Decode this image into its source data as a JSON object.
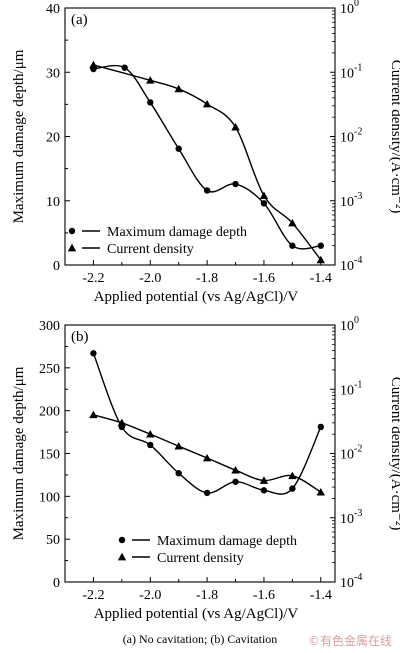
{
  "caption": "(a) No cavitation; (b) Cavitation",
  "watermark": "©有色金属在线",
  "chart_data": [
    {
      "type": "line",
      "panel_label": "(a)",
      "xlabel": "Applied potential (vs Ag/AgCl)/V",
      "ylabel_left": "Maximum damage depth/μm",
      "ylabel_right": "Current density/(A·cm⁻²)",
      "xlim": [
        -2.3,
        -1.35
      ],
      "x_ticks": [
        -2.2,
        -2.0,
        -1.8,
        -1.6,
        -1.4
      ],
      "x_tick_labels": [
        "-2.2",
        "-2.0",
        "-1.8",
        "-1.6",
        "-1.4"
      ],
      "ylim_left": [
        0,
        40
      ],
      "y_ticks_left": [
        0,
        10,
        20,
        30,
        40
      ],
      "y_tick_labels_left": [
        "0",
        "10",
        "20",
        "30",
        "40"
      ],
      "right_scale": "log",
      "ylim_right": [
        0.0001,
        1
      ],
      "y_ticks_right": [
        0.0001,
        0.001,
        0.01,
        0.1,
        1
      ],
      "y_tick_labels_right": [
        [
          "10",
          "-4"
        ],
        [
          "10",
          "-3"
        ],
        [
          "10",
          "-2"
        ],
        [
          "10",
          "-1"
        ],
        [
          "10",
          "0"
        ]
      ],
      "legend_position": "lower-left",
      "series": [
        {
          "name": "Maximum damage depth",
          "axis": "left",
          "marker": "circle",
          "x": [
            -2.2,
            -2.09,
            -2.0,
            -1.9,
            -1.8,
            -1.7,
            -1.6,
            -1.5,
            -1.4
          ],
          "y": [
            30.5,
            30.7,
            25.3,
            18.1,
            11.6,
            12.6,
            9.6,
            3.0,
            3.0
          ]
        },
        {
          "name": "Current density",
          "axis": "right",
          "marker": "triangle",
          "x": [
            -2.2,
            -2.0,
            -1.9,
            -1.8,
            -1.7,
            -1.6,
            -1.5,
            -1.4
          ],
          "y": [
            0.13,
            0.075,
            0.055,
            0.032,
            0.014,
            0.0012,
            0.00045,
            0.00012
          ]
        }
      ]
    },
    {
      "type": "line",
      "panel_label": "(b)",
      "xlabel": "Applied potential (vs Ag/AgCl)/V",
      "ylabel_left": "Maximum damage depth/μm",
      "ylabel_right": "Current density/(A·cm⁻²)",
      "xlim": [
        -2.3,
        -1.35
      ],
      "x_ticks": [
        -2.2,
        -2.0,
        -1.8,
        -1.6,
        -1.4
      ],
      "x_tick_labels": [
        "-2.2",
        "-2.0",
        "-1.8",
        "-1.6",
        "-1.4"
      ],
      "ylim_left": [
        0,
        300
      ],
      "y_ticks_left": [
        0,
        50,
        100,
        150,
        200,
        250,
        300
      ],
      "y_tick_labels_left": [
        "0",
        "50",
        "100",
        "150",
        "200",
        "250",
        "300"
      ],
      "right_scale": "log",
      "ylim_right": [
        0.0001,
        1
      ],
      "y_ticks_right": [
        0.0001,
        0.001,
        0.01,
        0.1,
        1
      ],
      "y_tick_labels_right": [
        [
          "10",
          "-4"
        ],
        [
          "10",
          "-3"
        ],
        [
          "10",
          "-2"
        ],
        [
          "10",
          "-1"
        ],
        [
          "10",
          "0"
        ]
      ],
      "legend_position": "lower-center",
      "series": [
        {
          "name": "Maximum damage depth",
          "axis": "left",
          "marker": "circle",
          "x": [
            -2.2,
            -2.1,
            -2.0,
            -1.9,
            -1.8,
            -1.7,
            -1.6,
            -1.5,
            -1.4
          ],
          "y": [
            267,
            181,
            160,
            127,
            104,
            117,
            107,
            109,
            181
          ]
        },
        {
          "name": "Current density",
          "axis": "right",
          "marker": "triangle",
          "x": [
            -2.2,
            -2.1,
            -2.0,
            -1.9,
            -1.8,
            -1.7,
            -1.6,
            -1.5,
            -1.4
          ],
          "y": [
            0.04,
            0.03,
            0.02,
            0.013,
            0.0085,
            0.0055,
            0.0038,
            0.0045,
            0.0025
          ]
        }
      ]
    }
  ]
}
